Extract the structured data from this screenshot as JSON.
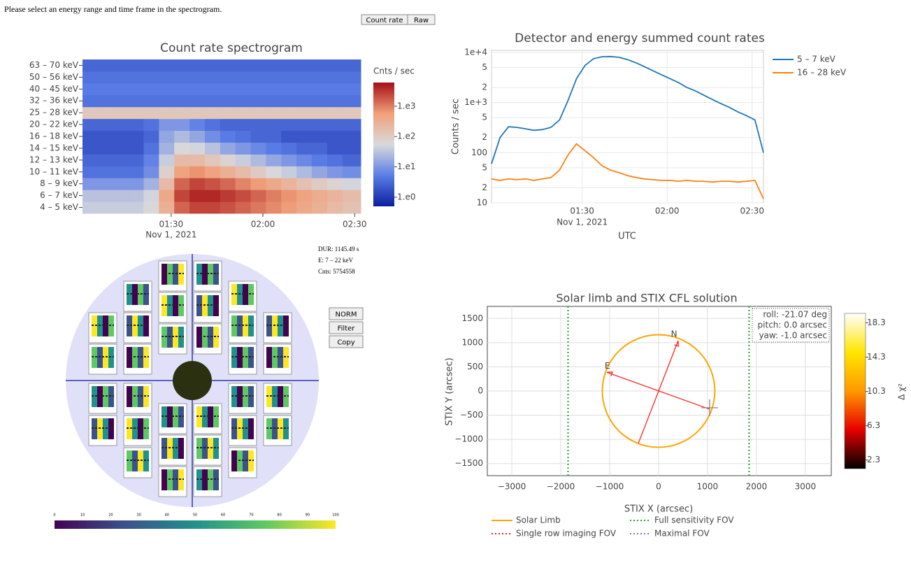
{
  "instruction": "Please select an energy range and time frame in the spectrogram.",
  "view_buttons": [
    "Count rate",
    "Raw"
  ],
  "detector_panel": {
    "info": [
      "DUR: 1145.49 s",
      "E: 7 – 22 keV",
      "Cnts: 5754558"
    ],
    "buttons": [
      "NORM",
      "Filter",
      "Copy"
    ],
    "colorbar_ticks": [
      0,
      10,
      20,
      30,
      40,
      50,
      60,
      70,
      80,
      90,
      100
    ]
  },
  "chart_data": [
    {
      "type": "heatmap",
      "title": "Count rate spectrogram",
      "categories": [
        "4 – 5 keV",
        "6 – 7 keV",
        "8 – 9 keV",
        "10 – 11 keV",
        "12 – 13 keV",
        "14 – 15 keV",
        "16 – 18 keV",
        "20 – 22 keV",
        "25 – 28 keV",
        "32 – 36 keV",
        "40 – 45 keV",
        "50 – 56 keV",
        "63 – 70 keV"
      ],
      "x": [
        "01:01",
        "01:06",
        "01:11",
        "01:16",
        "01:21",
        "01:26",
        "01:31",
        "01:36",
        "01:41",
        "01:46",
        "01:51",
        "01:56",
        "02:01",
        "02:06",
        "02:11",
        "02:16",
        "02:21",
        "02:26"
      ],
      "xlim": [
        "01:01",
        "02:32"
      ],
      "xticks": [
        "01:30",
        "02:00",
        "02:30"
      ],
      "x_date_label": "Nov 1, 2021",
      "z": [
        [
          40,
          40,
          40,
          40,
          60,
          300,
          1500,
          2500,
          2500,
          2000,
          1500,
          1100,
          800,
          600,
          400,
          300,
          200,
          150
        ],
        [
          30,
          30,
          30,
          30,
          50,
          400,
          2500,
          4000,
          4000,
          3000,
          2200,
          1500,
          1000,
          700,
          500,
          350,
          250,
          180
        ],
        [
          10,
          10,
          10,
          10,
          20,
          200,
          1500,
          2500,
          2000,
          1400,
          900,
          600,
          400,
          250,
          150,
          100,
          70,
          50
        ],
        [
          4,
          4,
          4,
          4,
          8,
          80,
          500,
          700,
          500,
          300,
          180,
          100,
          60,
          40,
          25,
          15,
          10,
          8
        ],
        [
          3,
          3,
          3,
          3,
          6,
          40,
          200,
          200,
          120,
          70,
          40,
          25,
          15,
          10,
          7,
          5,
          4,
          3
        ],
        [
          2,
          2,
          2,
          2,
          4,
          20,
          60,
          50,
          30,
          15,
          10,
          7,
          5,
          4,
          3,
          3,
          2,
          2
        ],
        [
          2,
          2,
          2,
          2,
          3,
          15,
          25,
          15,
          8,
          5,
          4,
          3,
          3,
          2,
          2,
          2,
          2,
          2
        ],
        [
          3,
          3,
          3,
          3,
          4,
          10,
          10,
          6,
          4,
          3,
          3,
          3,
          3,
          3,
          3,
          3,
          3,
          3
        ],
        [
          120,
          120,
          120,
          120,
          120,
          120,
          120,
          120,
          120,
          120,
          120,
          120,
          120,
          120,
          120,
          120,
          120,
          120
        ],
        [
          4,
          4,
          4,
          4,
          4,
          4,
          4,
          4,
          4,
          4,
          4,
          4,
          4,
          4,
          4,
          4,
          4,
          4
        ],
        [
          5,
          5,
          5,
          5,
          5,
          5,
          5,
          5,
          5,
          5,
          5,
          5,
          5,
          5,
          5,
          5,
          5,
          5
        ],
        [
          4,
          4,
          4,
          4,
          4,
          4,
          4,
          4,
          4,
          4,
          4,
          4,
          4,
          4,
          4,
          4,
          4,
          4
        ],
        [
          3,
          3,
          3,
          3,
          3,
          3,
          3,
          3,
          3,
          3,
          3,
          3,
          3,
          3,
          3,
          3,
          3,
          3
        ]
      ],
      "colorbar_title": "Cnts / sec",
      "clim": [
        0.5,
        6000
      ],
      "log_color": true,
      "colorbar_ticks": [
        {
          "value": 1,
          "label": "1.e0"
        },
        {
          "value": 10,
          "label": "1.e1"
        },
        {
          "value": 100,
          "label": "1.e2"
        },
        {
          "value": 1000,
          "label": "1.e3"
        }
      ],
      "colorscale": [
        "#0a1f9e",
        "#5b7de6",
        "#d9d9dc",
        "#f0a07a",
        "#a50f15"
      ]
    },
    {
      "type": "line",
      "title": "Detector and energy summed count rates",
      "xlabel": "UTC",
      "ylabel": "Counts / sec",
      "x_date_label": "Nov 1, 2021",
      "x": [
        "00:58",
        "01:01",
        "01:04",
        "01:07",
        "01:10",
        "01:13",
        "01:16",
        "01:19",
        "01:22",
        "01:25",
        "01:28",
        "01:31",
        "01:34",
        "01:37",
        "01:40",
        "01:43",
        "01:46",
        "01:49",
        "01:52",
        "01:55",
        "01:58",
        "02:01",
        "02:04",
        "02:07",
        "02:10",
        "02:13",
        "02:16",
        "02:19",
        "02:22",
        "02:25",
        "02:28",
        "02:31",
        "02:34"
      ],
      "series": [
        {
          "name": "5 – 7 keV",
          "color": "#1f77b4",
          "values": [
            60,
            200,
            330,
            320,
            300,
            280,
            290,
            320,
            450,
            1100,
            3000,
            5500,
            7500,
            8200,
            8300,
            8000,
            7200,
            6200,
            5200,
            4300,
            3600,
            3000,
            2500,
            2000,
            1700,
            1400,
            1150,
            950,
            800,
            650,
            550,
            450,
            100
          ]
        },
        {
          "name": "16 – 28 keV",
          "color": "#ff7f0e",
          "values": [
            30,
            28,
            30,
            29,
            30,
            28,
            30,
            32,
            45,
            90,
            150,
            110,
            80,
            55,
            45,
            40,
            35,
            32,
            30,
            29,
            28,
            28,
            27,
            28,
            27,
            27,
            26,
            27,
            27,
            26,
            27,
            28,
            12
          ]
        }
      ],
      "xlim": [
        "00:58",
        "02:34"
      ],
      "xticks": [
        "01:30",
        "02:00",
        "02:30"
      ],
      "ylim": [
        10,
        11000
      ],
      "log_y": true,
      "yticks": [
        10,
        {
          "value": 20,
          "label": "2"
        },
        {
          "value": 50,
          "label": "5"
        },
        100,
        {
          "value": 200,
          "label": "2"
        },
        {
          "value": 500,
          "label": "5"
        },
        {
          "value": 1000,
          "label": "1e+3"
        },
        {
          "value": 2000,
          "label": "2"
        },
        {
          "value": 5000,
          "label": "5"
        },
        {
          "value": 10000,
          "label": "1e+4"
        }
      ],
      "grid": true,
      "legend": "right"
    },
    {
      "type": "solar_map",
      "title": "Solar limb and STIX CFL solution",
      "xlabel": "STIX X (arcsec)",
      "ylabel": "STIX Y (arcsec)",
      "xlim": [
        -3500,
        3530
      ],
      "ylim": [
        -1750,
        1750
      ],
      "xticks": [
        {
          "value": -3000,
          "label": "−3000"
        },
        {
          "value": -2000,
          "label": "−2000"
        },
        {
          "value": -1000,
          "label": "−1000"
        },
        0,
        1000,
        2000,
        3000
      ],
      "yticks": [
        {
          "value": -1500,
          "label": "−1500"
        },
        {
          "value": -1000,
          "label": "−1000"
        },
        {
          "value": -500,
          "label": "−500"
        },
        0,
        500,
        1000,
        1500
      ],
      "grid": true,
      "series": [
        {
          "name": "Solar Limb",
          "color": "#ffa500",
          "kind": "circle",
          "center": [
            0,
            0
          ],
          "radius": 1150
        },
        {
          "name": "Full sensitivity  FOV",
          "color": "#2ca02c",
          "kind": "vlines",
          "values": [
            -1850,
            1850
          ]
        },
        {
          "name": "Single row imaging FOV",
          "color": "#d62728",
          "kind": "vlines"
        },
        {
          "name": "Maximal FOV",
          "color": "#9467bd",
          "kind": "vlines"
        }
      ],
      "arrows": [
        {
          "label": "N",
          "color": "#ff2020",
          "from": [
            -414,
            -1082
          ],
          "to": [
            400,
            1040
          ]
        },
        {
          "label": "E",
          "color": "#ff2020",
          "from": [
            1043,
            -375
          ],
          "to": [
            -1057,
            386
          ]
        }
      ],
      "source": {
        "x": 1043,
        "y": -346,
        "color": "#808080"
      },
      "annotation": [
        "roll: -21.07 deg",
        "pitch: 0.0 arcsec",
        "yaw: -1.0 arcsec"
      ],
      "colorbar_title": "Δ χ²",
      "clim": [
        1.3,
        19.4
      ],
      "colorbar_ticks": [
        2.3,
        6.3,
        10.3,
        14.3,
        18.3
      ],
      "colorscale": [
        "#000000",
        "#e60000",
        "#ff9900",
        "#ffe600",
        "#ffffff"
      ]
    }
  ]
}
